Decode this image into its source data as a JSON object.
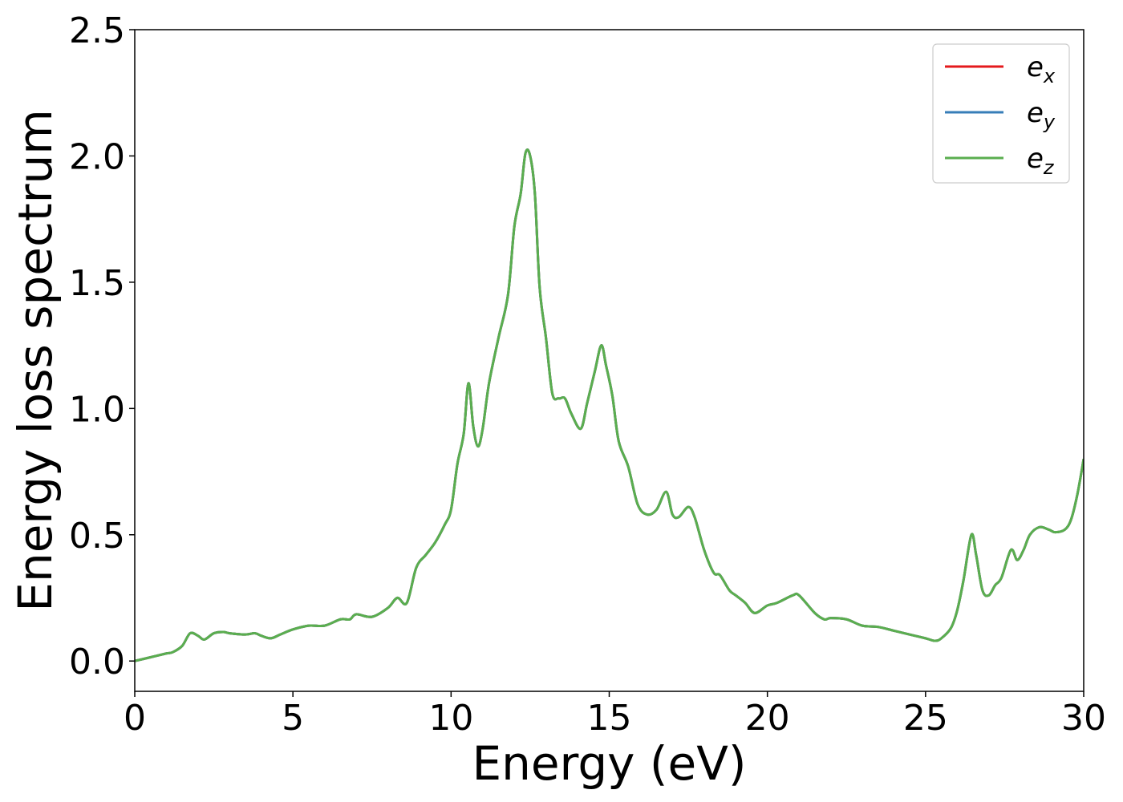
{
  "chart_data": {
    "type": "line",
    "xlabel": "Energy (eV)",
    "ylabel": "Energy loss spectrum",
    "xlim": [
      0,
      30
    ],
    "ylim": [
      -0.12,
      2.5
    ],
    "xticks": [
      0,
      5,
      10,
      15,
      20,
      25,
      30
    ],
    "xtick_labels": [
      "0",
      "5",
      "10",
      "15",
      "20",
      "25",
      "30"
    ],
    "yticks": [
      0.0,
      0.5,
      1.0,
      1.5,
      2.0,
      2.5
    ],
    "ytick_labels": [
      "0.0",
      "0.5",
      "1.0",
      "1.5",
      "2.0",
      "2.5"
    ],
    "grid": false,
    "legend_position": "top-right",
    "series": [
      {
        "name": "e_x",
        "legend_base": "e",
        "legend_sub": "x",
        "color": "#e41a1c",
        "x": [
          0,
          0.5,
          1.0,
          1.2,
          1.5,
          1.75,
          2.0,
          2.2,
          2.5,
          2.8,
          3.0,
          3.5,
          3.8,
          4.0,
          4.3,
          4.6,
          5.0,
          5.5,
          6.0,
          6.5,
          6.8,
          7.0,
          7.5,
          8.0,
          8.3,
          8.6,
          8.9,
          9.2,
          9.5,
          9.8,
          10.0,
          10.2,
          10.4,
          10.55,
          10.7,
          10.85,
          11.0,
          11.2,
          11.5,
          11.8,
          12.0,
          12.2,
          12.35,
          12.5,
          12.65,
          12.8,
          13.0,
          13.2,
          13.4,
          13.6,
          13.8,
          14.1,
          14.3,
          14.55,
          14.75,
          14.9,
          15.1,
          15.3,
          15.6,
          15.9,
          16.2,
          16.5,
          16.8,
          17.0,
          17.2,
          17.5,
          17.7,
          18.0,
          18.3,
          18.5,
          18.8,
          19.0,
          19.3,
          19.6,
          20.0,
          20.3,
          20.8,
          21.0,
          21.5,
          21.8,
          22.0,
          22.5,
          23.0,
          23.5,
          24.0,
          24.5,
          25.0,
          25.3,
          25.5,
          25.8,
          26.0,
          26.2,
          26.45,
          26.6,
          26.8,
          27.0,
          27.2,
          27.4,
          27.7,
          27.9,
          28.1,
          28.3,
          28.6,
          28.9,
          29.1,
          29.4,
          29.6,
          29.8,
          30.0
        ],
        "y": [
          0.0,
          0.015,
          0.03,
          0.035,
          0.06,
          0.11,
          0.1,
          0.085,
          0.11,
          0.115,
          0.11,
          0.105,
          0.11,
          0.1,
          0.09,
          0.105,
          0.125,
          0.14,
          0.14,
          0.165,
          0.165,
          0.185,
          0.175,
          0.21,
          0.25,
          0.23,
          0.37,
          0.42,
          0.47,
          0.54,
          0.6,
          0.78,
          0.9,
          1.1,
          0.93,
          0.85,
          0.92,
          1.1,
          1.28,
          1.45,
          1.72,
          1.85,
          2.01,
          2.0,
          1.85,
          1.48,
          1.28,
          1.06,
          1.04,
          1.04,
          0.98,
          0.92,
          1.02,
          1.15,
          1.25,
          1.17,
          1.05,
          0.87,
          0.77,
          0.62,
          0.58,
          0.6,
          0.67,
          0.58,
          0.57,
          0.61,
          0.57,
          0.44,
          0.35,
          0.34,
          0.28,
          0.26,
          0.23,
          0.19,
          0.22,
          0.23,
          0.26,
          0.26,
          0.19,
          0.165,
          0.17,
          0.165,
          0.14,
          0.135,
          0.12,
          0.105,
          0.09,
          0.08,
          0.09,
          0.13,
          0.2,
          0.32,
          0.5,
          0.42,
          0.28,
          0.26,
          0.3,
          0.33,
          0.44,
          0.4,
          0.44,
          0.5,
          0.53,
          0.52,
          0.51,
          0.52,
          0.56,
          0.66,
          0.8
        ]
      },
      {
        "name": "e_y",
        "legend_base": "e",
        "legend_sub": "y",
        "color": "#377eb8",
        "x": [
          0,
          0.5,
          1.0,
          1.2,
          1.5,
          1.75,
          2.0,
          2.2,
          2.5,
          2.8,
          3.0,
          3.5,
          3.8,
          4.0,
          4.3,
          4.6,
          5.0,
          5.5,
          6.0,
          6.5,
          6.8,
          7.0,
          7.5,
          8.0,
          8.3,
          8.6,
          8.9,
          9.2,
          9.5,
          9.8,
          10.0,
          10.2,
          10.4,
          10.55,
          10.7,
          10.85,
          11.0,
          11.2,
          11.5,
          11.8,
          12.0,
          12.2,
          12.35,
          12.5,
          12.65,
          12.8,
          13.0,
          13.2,
          13.4,
          13.6,
          13.8,
          14.1,
          14.3,
          14.55,
          14.75,
          14.9,
          15.1,
          15.3,
          15.6,
          15.9,
          16.2,
          16.5,
          16.8,
          17.0,
          17.2,
          17.5,
          17.7,
          18.0,
          18.3,
          18.5,
          18.8,
          19.0,
          19.3,
          19.6,
          20.0,
          20.3,
          20.8,
          21.0,
          21.5,
          21.8,
          22.0,
          22.5,
          23.0,
          23.5,
          24.0,
          24.5,
          25.0,
          25.3,
          25.5,
          25.8,
          26.0,
          26.2,
          26.45,
          26.6,
          26.8,
          27.0,
          27.2,
          27.4,
          27.7,
          27.9,
          28.1,
          28.3,
          28.6,
          28.9,
          29.1,
          29.4,
          29.6,
          29.8,
          30.0
        ],
        "y": [
          0.0,
          0.015,
          0.03,
          0.035,
          0.06,
          0.11,
          0.1,
          0.085,
          0.11,
          0.115,
          0.11,
          0.105,
          0.11,
          0.1,
          0.09,
          0.105,
          0.125,
          0.14,
          0.14,
          0.165,
          0.165,
          0.185,
          0.175,
          0.21,
          0.25,
          0.23,
          0.37,
          0.42,
          0.47,
          0.54,
          0.6,
          0.78,
          0.9,
          1.1,
          0.93,
          0.85,
          0.92,
          1.1,
          1.28,
          1.45,
          1.72,
          1.85,
          2.01,
          2.0,
          1.85,
          1.48,
          1.28,
          1.06,
          1.04,
          1.04,
          0.98,
          0.92,
          1.02,
          1.15,
          1.25,
          1.17,
          1.05,
          0.87,
          0.77,
          0.62,
          0.58,
          0.6,
          0.67,
          0.58,
          0.57,
          0.61,
          0.57,
          0.44,
          0.35,
          0.34,
          0.28,
          0.26,
          0.23,
          0.19,
          0.22,
          0.23,
          0.26,
          0.26,
          0.19,
          0.165,
          0.17,
          0.165,
          0.14,
          0.135,
          0.12,
          0.105,
          0.09,
          0.08,
          0.09,
          0.13,
          0.2,
          0.32,
          0.5,
          0.42,
          0.28,
          0.26,
          0.3,
          0.33,
          0.44,
          0.4,
          0.44,
          0.5,
          0.53,
          0.52,
          0.51,
          0.52,
          0.56,
          0.66,
          0.8
        ]
      },
      {
        "name": "e_z",
        "legend_base": "e",
        "legend_sub": "z",
        "color": "#5aae4f",
        "x": [
          0,
          0.5,
          1.0,
          1.2,
          1.5,
          1.75,
          2.0,
          2.2,
          2.5,
          2.8,
          3.0,
          3.5,
          3.8,
          4.0,
          4.3,
          4.6,
          5.0,
          5.5,
          6.0,
          6.5,
          6.8,
          7.0,
          7.5,
          8.0,
          8.3,
          8.6,
          8.9,
          9.2,
          9.5,
          9.8,
          10.0,
          10.2,
          10.4,
          10.55,
          10.7,
          10.85,
          11.0,
          11.2,
          11.5,
          11.8,
          12.0,
          12.2,
          12.35,
          12.5,
          12.65,
          12.8,
          13.0,
          13.2,
          13.4,
          13.6,
          13.8,
          14.1,
          14.3,
          14.55,
          14.75,
          14.9,
          15.1,
          15.3,
          15.6,
          15.9,
          16.2,
          16.5,
          16.8,
          17.0,
          17.2,
          17.5,
          17.7,
          18.0,
          18.3,
          18.5,
          18.8,
          19.0,
          19.3,
          19.6,
          20.0,
          20.3,
          20.8,
          21.0,
          21.5,
          21.8,
          22.0,
          22.5,
          23.0,
          23.5,
          24.0,
          24.5,
          25.0,
          25.3,
          25.5,
          25.8,
          26.0,
          26.2,
          26.45,
          26.6,
          26.8,
          27.0,
          27.2,
          27.4,
          27.7,
          27.9,
          28.1,
          28.3,
          28.6,
          28.9,
          29.1,
          29.4,
          29.6,
          29.8,
          30.0
        ],
        "y": [
          0.0,
          0.015,
          0.03,
          0.035,
          0.06,
          0.11,
          0.1,
          0.085,
          0.11,
          0.115,
          0.11,
          0.105,
          0.11,
          0.1,
          0.09,
          0.105,
          0.125,
          0.14,
          0.14,
          0.165,
          0.165,
          0.185,
          0.175,
          0.21,
          0.25,
          0.23,
          0.37,
          0.42,
          0.47,
          0.54,
          0.6,
          0.78,
          0.9,
          1.1,
          0.93,
          0.85,
          0.92,
          1.1,
          1.28,
          1.45,
          1.72,
          1.85,
          2.01,
          2.0,
          1.85,
          1.48,
          1.28,
          1.06,
          1.04,
          1.04,
          0.98,
          0.92,
          1.02,
          1.15,
          1.25,
          1.17,
          1.05,
          0.87,
          0.77,
          0.62,
          0.58,
          0.6,
          0.67,
          0.58,
          0.57,
          0.61,
          0.57,
          0.44,
          0.35,
          0.34,
          0.28,
          0.26,
          0.23,
          0.19,
          0.22,
          0.23,
          0.26,
          0.26,
          0.19,
          0.165,
          0.17,
          0.165,
          0.14,
          0.135,
          0.12,
          0.105,
          0.09,
          0.08,
          0.09,
          0.13,
          0.2,
          0.32,
          0.5,
          0.42,
          0.28,
          0.26,
          0.3,
          0.33,
          0.44,
          0.4,
          0.44,
          0.5,
          0.53,
          0.52,
          0.51,
          0.52,
          0.56,
          0.66,
          0.8
        ]
      }
    ]
  }
}
